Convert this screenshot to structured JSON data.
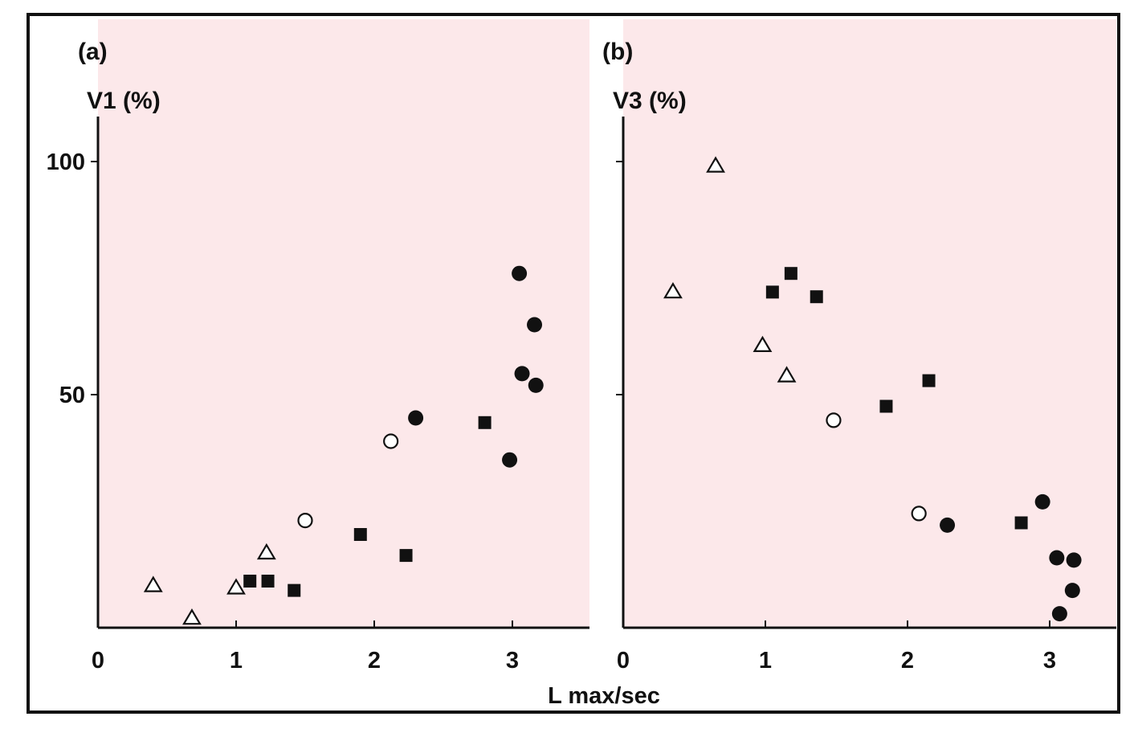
{
  "chart_data": {
    "type": "scatter",
    "xlabel": "L max/sec",
    "panels": [
      {
        "panel_label": "(a)",
        "ylabel": "V1 (%)",
        "xlim": [
          0,
          3.5
        ],
        "ylim": [
          0,
          110
        ],
        "xticks": [
          "0",
          "1",
          "2",
          "3"
        ],
        "yticks": [
          "50",
          "100"
        ],
        "series": [
          {
            "marker": "open-triangle",
            "points": [
              [
                0.4,
                9
              ],
              [
                0.68,
                2
              ],
              [
                1.0,
                8.5
              ],
              [
                1.22,
                16
              ]
            ]
          },
          {
            "marker": "filled-square",
            "points": [
              [
                1.1,
                10
              ],
              [
                1.23,
                10
              ],
              [
                1.42,
                8
              ],
              [
                1.9,
                20
              ],
              [
                2.23,
                15.5
              ],
              [
                2.8,
                44
              ]
            ]
          },
          {
            "marker": "open-circle",
            "points": [
              [
                1.5,
                23
              ],
              [
                2.12,
                40
              ]
            ]
          },
          {
            "marker": "filled-circle",
            "points": [
              [
                2.3,
                45
              ],
              [
                2.98,
                36
              ],
              [
                3.05,
                76
              ],
              [
                3.07,
                54.5
              ],
              [
                3.16,
                65
              ],
              [
                3.17,
                52
              ]
            ]
          }
        ]
      },
      {
        "panel_label": "(b)",
        "ylabel": "V3 (%)",
        "xlim": [
          0,
          3.5
        ],
        "ylim": [
          0,
          110
        ],
        "xticks": [
          "0",
          "1",
          "2",
          "3"
        ],
        "yticks": [
          "50",
          "100"
        ],
        "series": [
          {
            "marker": "open-triangle",
            "points": [
              [
                0.35,
                72
              ],
              [
                0.65,
                99
              ],
              [
                0.98,
                60.5
              ],
              [
                1.15,
                54
              ]
            ]
          },
          {
            "marker": "filled-square",
            "points": [
              [
                1.05,
                72
              ],
              [
                1.18,
                76
              ],
              [
                1.36,
                71
              ],
              [
                1.85,
                47.5
              ],
              [
                2.15,
                53
              ],
              [
                2.8,
                22.5
              ]
            ]
          },
          {
            "marker": "open-circle",
            "points": [
              [
                1.48,
                44.5
              ],
              [
                2.08,
                24.5
              ]
            ]
          },
          {
            "marker": "filled-circle",
            "points": [
              [
                2.28,
                22
              ],
              [
                2.95,
                27
              ],
              [
                3.05,
                15
              ],
              [
                3.07,
                3
              ],
              [
                3.16,
                8
              ],
              [
                3.17,
                14.5
              ]
            ]
          }
        ]
      }
    ]
  }
}
